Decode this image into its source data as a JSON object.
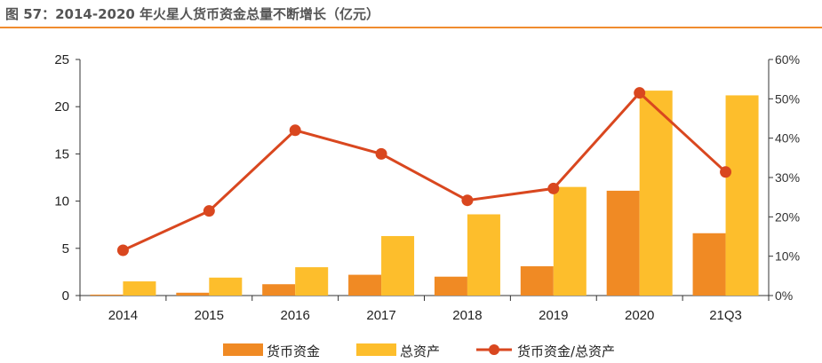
{
  "title": "图 57：2014-2020 年火星人货币资金总量不断增长（亿元）",
  "colors": {
    "title_rule": "#F08C2E",
    "cash": "#F08A24",
    "total_assets": "#FDBE2C",
    "ratio_line": "#D9471F",
    "axis": "#333333"
  },
  "chart_data": {
    "type": "bar",
    "categories": [
      "2014",
      "2015",
      "2016",
      "2017",
      "2018",
      "2019",
      "2020",
      "21Q3"
    ],
    "series": [
      {
        "name": "货币资金",
        "kind": "bar",
        "axis": "left",
        "values": [
          0.1,
          0.3,
          1.2,
          2.2,
          2.0,
          3.1,
          11.1,
          6.6
        ]
      },
      {
        "name": "总资产",
        "kind": "bar",
        "axis": "left",
        "values": [
          1.5,
          1.9,
          3.0,
          6.3,
          8.6,
          11.5,
          21.7,
          21.2
        ]
      },
      {
        "name": "货币资金/总资产",
        "kind": "line",
        "axis": "right",
        "values": [
          11.5,
          21.5,
          42.0,
          36.0,
          24.2,
          27.2,
          51.5,
          31.4
        ]
      }
    ],
    "y_left": {
      "min": 0,
      "max": 25,
      "ticks": [
        "0",
        "5",
        "10",
        "15",
        "20",
        "25"
      ]
    },
    "y_right": {
      "min": 0,
      "max": 60,
      "ticks": [
        "0%",
        "10%",
        "20%",
        "30%",
        "40%",
        "50%",
        "60%"
      ]
    },
    "legend_position": "bottom",
    "grid": false
  }
}
